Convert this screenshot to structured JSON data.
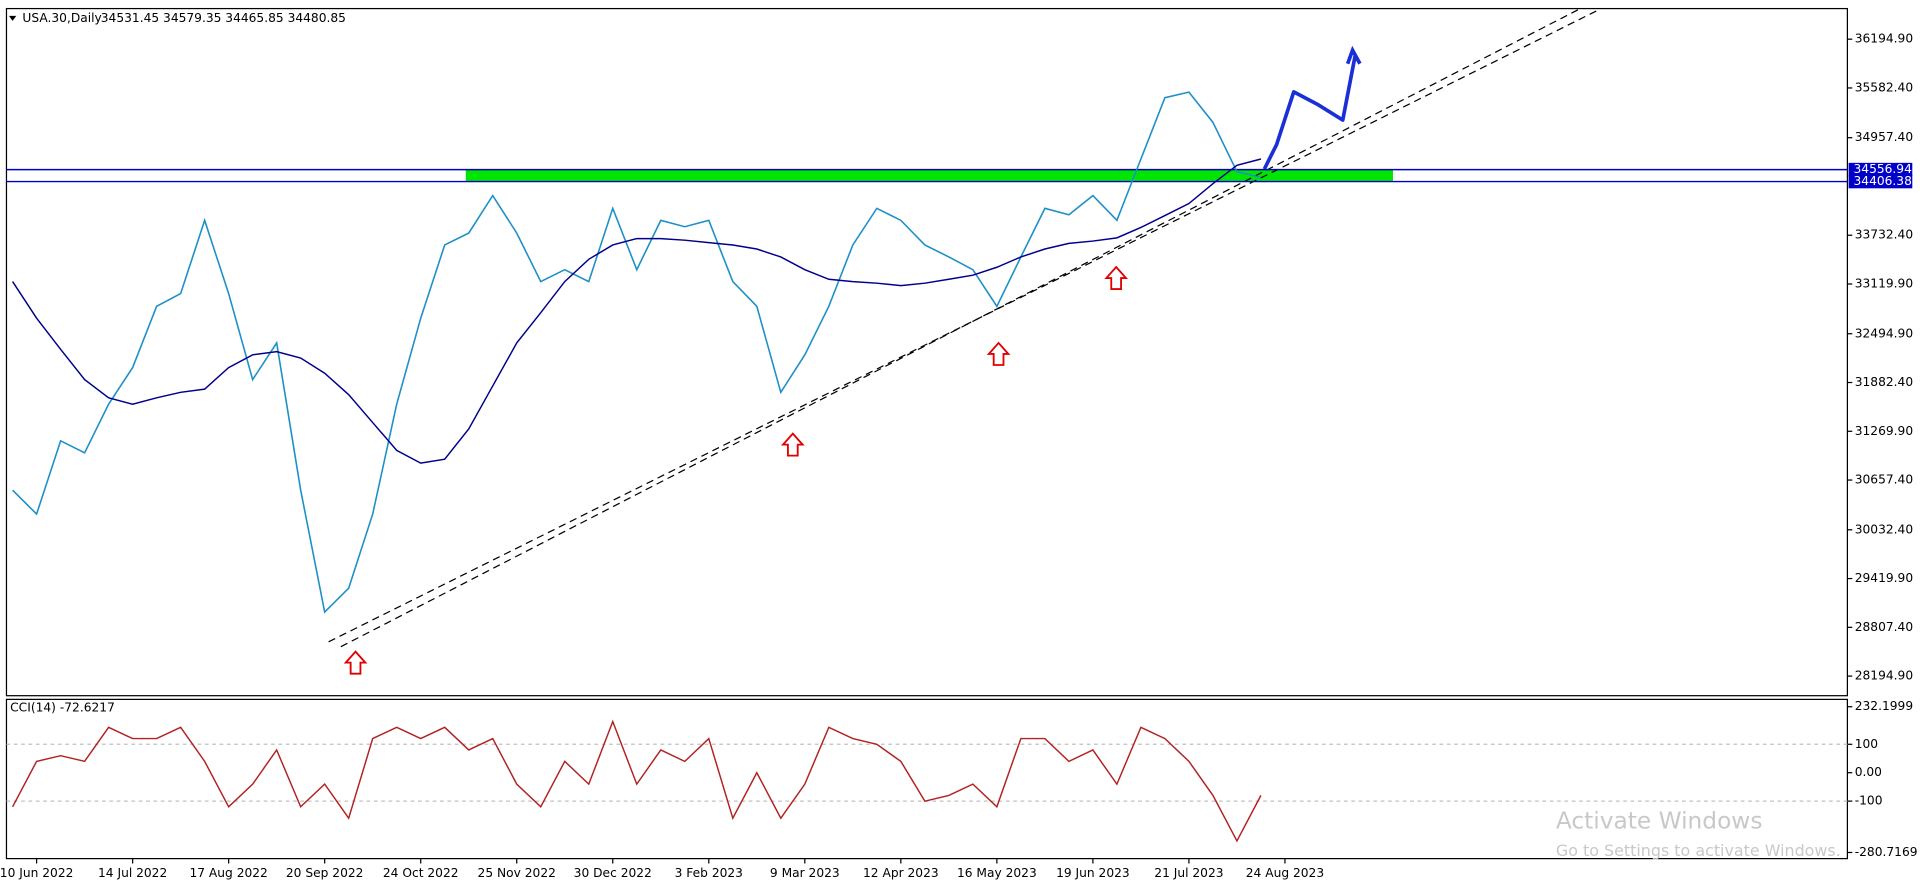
{
  "chart_data": [
    {
      "type": "line",
      "title": "USA.30,Daily",
      "subtitle": "34531.45 34579.35 34465.85 34480.85",
      "categories": [
        null,
        "10 Jun 2022",
        null,
        null,
        null,
        "14 Jul 2022",
        null,
        null,
        null,
        "17 Aug 2022",
        null,
        null,
        null,
        "20 Sep 2022",
        null,
        null,
        null,
        "24 Oct 2022",
        null,
        null,
        null,
        "25 Nov 2022",
        null,
        null,
        null,
        "30 Dec 2022",
        null,
        null,
        null,
        "3 Feb 2023",
        null,
        null,
        null,
        "9 Mar 2023",
        null,
        null,
        null,
        "12 Apr 2023",
        null,
        null,
        null,
        "16 May 2023",
        null,
        null,
        null,
        "19 Jun 2023",
        null,
        null,
        null,
        "21 Jul 2023",
        null,
        null,
        null,
        "24 Aug 2023"
      ],
      "series": [
        {
          "color": "#1e90c8",
          "values": [
            30530,
            30230,
            31150,
            31000,
            31610,
            32070,
            32840,
            33000,
            33920,
            33000,
            31920,
            32380,
            30530,
            29000,
            29300,
            30230,
            31610,
            32690,
            33610,
            33760,
            34230,
            33760,
            33150,
            33300,
            33150,
            34070,
            33300,
            33920,
            33840,
            33920,
            33150,
            32840,
            31760,
            32230,
            32840,
            33610,
            34070,
            33920,
            33610,
            33460,
            33300,
            32840,
            33460,
            34070,
            33990,
            34230,
            33920,
            34690,
            35460,
            35530,
            35150,
            34530,
            34460,
            null
          ]
        },
        {
          "color": "#00008b",
          "values": [
            33150,
            32690,
            32300,
            31920,
            31690,
            31610,
            31690,
            31760,
            31800,
            32070,
            32230,
            32270,
            32190,
            32000,
            31730,
            31380,
            31030,
            30870,
            30920,
            31300,
            31840,
            32380,
            32760,
            33150,
            33430,
            33610,
            33690,
            33690,
            33670,
            33640,
            33610,
            33560,
            33460,
            33300,
            33180,
            33150,
            33130,
            33100,
            33130,
            33180,
            33230,
            33330,
            33460,
            33560,
            33630,
            33660,
            33700,
            33830,
            33980,
            34130,
            34380,
            34610,
            34690,
            null
          ]
        }
      ],
      "levels": [
        34556.94,
        34406.38
      ],
      "level_color": "#0000c8",
      "zone_color": "#00e600",
      "ylim": [
        27964,
        36564
      ],
      "yticks": [
        {
          "value": 36194.9,
          "label": "36194.90"
        },
        {
          "value": 35582.4,
          "label": "35582.40"
        },
        {
          "value": 34957.4,
          "label": "34957.40"
        },
        {
          "value": 33732.4,
          "label": "33732.40"
        },
        {
          "value": 33119.9,
          "label": "33119.90"
        },
        {
          "value": 32494.9,
          "label": "32494.90"
        },
        {
          "value": 31882.4,
          "label": "31882.40"
        },
        {
          "value": 31269.9,
          "label": "31269.90"
        },
        {
          "value": 30657.4,
          "label": "30657.40"
        },
        {
          "value": 30032.4,
          "label": "30032.40"
        },
        {
          "value": 29419.9,
          "label": "29419.90"
        },
        {
          "value": 28807.4,
          "label": "28807.40"
        },
        {
          "value": 28194.9,
          "label": "28194.90"
        }
      ],
      "grid": false
    },
    {
      "type": "line",
      "title": "CCI(14) -72.6217",
      "series": [
        {
          "color": "#b22222",
          "values": [
            -120,
            40,
            60,
            40,
            160,
            120,
            120,
            160,
            40,
            -120,
            -40,
            80,
            -120,
            -40,
            -160,
            120,
            160,
            120,
            160,
            80,
            120,
            -40,
            -120,
            40,
            -40,
            180,
            -40,
            80,
            40,
            120,
            -160,
            0,
            -160,
            -40,
            160,
            120,
            100,
            40,
            -100,
            -80,
            -40,
            -120,
            120,
            120,
            40,
            80,
            -40,
            160,
            120,
            40,
            -80,
            -240,
            -80,
            null
          ]
        }
      ],
      "levels": [
        100,
        -100
      ],
      "ylim": [
        -280.7169,
        232.1999
      ],
      "yticks": [
        232.1999,
        100,
        {
          "value": 0,
          "label": "0.00"
        },
        -100,
        -280.7169
      ],
      "grid": false
    }
  ],
  "watermark": {
    "title": "Activate Windows",
    "subtitle": "Go to Settings to activate Windows."
  }
}
